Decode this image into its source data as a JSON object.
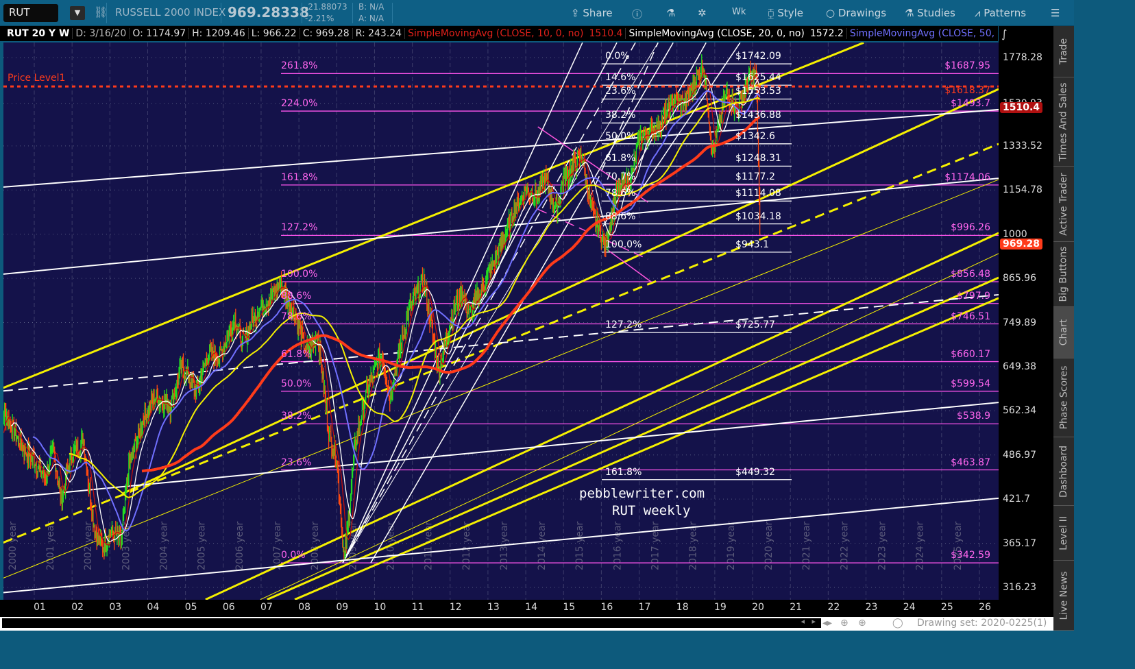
{
  "toolbar": {
    "symbol": "RUT",
    "instrument_name": "RUSSELL 2000 INDEX",
    "last_price": "969.28338",
    "change": "-21.88073",
    "change_pct": "-2.21%",
    "bid": "B: N/A",
    "ask": "A: N/A",
    "buttons": [
      "Share",
      "Wk",
      "Style",
      "Drawings",
      "Studies",
      "Patterns"
    ]
  },
  "legend": {
    "title": "RUT 20 Y W",
    "date": "D: 3/16/20",
    "open": "O: 1174.97",
    "high": "H: 1209.46",
    "low": "L: 966.22",
    "close": "C: 969.28",
    "range": "R: 243.24",
    "studies": [
      {
        "label": "SimpleMovingAvg (CLOSE, 10, 0, no)",
        "value": "1510.4",
        "color": "#e0201a"
      },
      {
        "label": "SimpleMovingAvg (CLOSE, 20, 0, no)",
        "value": "1572.2",
        "color": "#ffffff"
      },
      {
        "label": "SimpleMovingAvg (CLOSE, 50, 0,...",
        "value": "",
        "color": "#7070ff"
      }
    ]
  },
  "sidebar": {
    "tabs": [
      "Trade",
      "Times And Sales",
      "Active Trader",
      "Big Buttons",
      "Chart",
      "Phase Scores",
      "Dashboard",
      "Level II",
      "Live News"
    ],
    "active": "Chart"
  },
  "bottom": {
    "drawing_set": "Drawing set: 2020-0225(1)"
  },
  "watermark": [
    "pebblewriter.com",
    "RUT weekly"
  ],
  "chart_data": {
    "type": "candlestick",
    "scale": "log",
    "ylim": [
      300,
      1900
    ],
    "xlim": [
      2000.0,
      2026.5
    ],
    "grid": true,
    "y_ticks": [
      "1778.28",
      "1530.93",
      "1333.52",
      "1154.78",
      "1000",
      "865.96",
      "749.89",
      "649.38",
      "562.34",
      "486.97",
      "421.7",
      "365.17",
      "316.23"
    ],
    "x_ticks": [
      "01",
      "02",
      "03",
      "04",
      "05",
      "06",
      "07",
      "08",
      "09",
      "10",
      "11",
      "12",
      "13",
      "14",
      "15",
      "16",
      "17",
      "18",
      "19",
      "20",
      "21",
      "22",
      "23",
      "24",
      "25",
      "26"
    ],
    "year_labels": [
      "2000 year",
      "2001 year",
      "2002 year",
      "2003 year",
      "2004 year",
      "2005 year",
      "2006 year",
      "2007 year",
      "2008 year",
      "2009 year",
      "2010 year",
      "2011 year",
      "2012 year",
      "2013 year",
      "2014 year",
      "2015 year",
      "2016 year",
      "2017 year",
      "2018 year",
      "2019 year",
      "2020 year",
      "2021 year",
      "2022 year",
      "2023 year",
      "2024 year",
      "2025 year"
    ],
    "price_badges": [
      {
        "value": "1510.4",
        "color": "#b01010"
      },
      {
        "value": "969.28",
        "color": "#ff3b1a"
      }
    ],
    "price_level": {
      "label": "Price Level1",
      "value": 1618.37,
      "value_label": "$1618.37",
      "color": "#ff3b1a"
    },
    "price_series": [
      [
        2000.0,
        500
      ],
      [
        2000.2,
        560
      ],
      [
        2000.5,
        520
      ],
      [
        2000.8,
        490
      ],
      [
        2001.0,
        480
      ],
      [
        2001.3,
        450
      ],
      [
        2001.5,
        500
      ],
      [
        2001.7,
        420
      ],
      [
        2002.0,
        490
      ],
      [
        2002.3,
        510
      ],
      [
        2002.6,
        380
      ],
      [
        2002.8,
        360
      ],
      [
        2003.0,
        380
      ],
      [
        2003.3,
        370
      ],
      [
        2003.5,
        470
      ],
      [
        2003.9,
        550
      ],
      [
        2004.2,
        590
      ],
      [
        2004.6,
        570
      ],
      [
        2004.9,
        650
      ],
      [
        2005.3,
        600
      ],
      [
        2005.6,
        680
      ],
      [
        2005.9,
        670
      ],
      [
        2006.3,
        760
      ],
      [
        2006.5,
        700
      ],
      [
        2006.9,
        780
      ],
      [
        2007.3,
        820
      ],
      [
        2007.5,
        850
      ],
      [
        2007.9,
        770
      ],
      [
        2008.2,
        680
      ],
      [
        2008.5,
        720
      ],
      [
        2008.8,
        520
      ],
      [
        2009.0,
        480
      ],
      [
        2009.2,
        343
      ],
      [
        2009.5,
        510
      ],
      [
        2009.8,
        600
      ],
      [
        2010.2,
        680
      ],
      [
        2010.4,
        590
      ],
      [
        2010.9,
        780
      ],
      [
        2011.3,
        860
      ],
      [
        2011.7,
        640
      ],
      [
        2012.0,
        750
      ],
      [
        2012.3,
        830
      ],
      [
        2012.5,
        770
      ],
      [
        2012.9,
        850
      ],
      [
        2013.3,
        950
      ],
      [
        2013.7,
        1080
      ],
      [
        2014.0,
        1160
      ],
      [
        2014.3,
        1130
      ],
      [
        2014.5,
        1200
      ],
      [
        2014.8,
        1080
      ],
      [
        2015.0,
        1200
      ],
      [
        2015.5,
        1290
      ],
      [
        2015.7,
        1100
      ],
      [
        2016.1,
        960
      ],
      [
        2016.4,
        1150
      ],
      [
        2016.8,
        1200
      ],
      [
        2017.0,
        1370
      ],
      [
        2017.5,
        1420
      ],
      [
        2017.9,
        1540
      ],
      [
        2018.2,
        1530
      ],
      [
        2018.7,
        1740
      ],
      [
        2018.95,
        1300
      ],
      [
        2019.3,
        1580
      ],
      [
        2019.6,
        1500
      ],
      [
        2019.9,
        1660
      ],
      [
        2020.1,
        1680
      ],
      [
        2020.2,
        969
      ]
    ],
    "moving_averages": [
      {
        "length": 10,
        "color": "#c0100c"
      },
      {
        "length": 20,
        "color": "#ffffff"
      },
      {
        "length": 50,
        "color": "#7070ff"
      },
      {
        "length": 100,
        "color": "#f5f000"
      },
      {
        "length": 200,
        "color": "#ff3b1a"
      }
    ],
    "fib_extension_levels": [
      {
        "pct": "261.8%",
        "value": 1687.95,
        "label": "$1687.95"
      },
      {
        "pct": "224.0%",
        "value": 1493.7,
        "label": "$1493.7"
      },
      {
        "pct": "161.8%",
        "value": 1174.06,
        "label": "$1174.06"
      },
      {
        "pct": "127.2%",
        "value": 996.26,
        "label": "$996.26"
      },
      {
        "pct": "100.0%",
        "value": 856.48,
        "label": "$856.48"
      },
      {
        "pct": "88.6%",
        "value": 797.9,
        "label": "$797.9"
      },
      {
        "pct": "78.6%",
        "value": 746.51,
        "label": "$746.51"
      },
      {
        "pct": "61.8%",
        "value": 660.17,
        "label": "$660.17"
      },
      {
        "pct": "50.0%",
        "value": 599.54,
        "label": "$599.54"
      },
      {
        "pct": "38.2%",
        "value": 538.9,
        "label": "$538.9"
      },
      {
        "pct": "23.6%",
        "value": 463.87,
        "label": "$463.87"
      },
      {
        "pct": "0.0%",
        "value": 342.59,
        "label": "$342.59"
      }
    ],
    "fib_retracement_levels": [
      {
        "pct": "0.0%",
        "value": 1742.09,
        "label": "$1742.09"
      },
      {
        "pct": "14.6%",
        "value": 1625.44,
        "label": "$1625.44"
      },
      {
        "pct": "23.6%",
        "value": 1553.53,
        "label": "$1553.53"
      },
      {
        "pct": "38.2%",
        "value": 1436.88,
        "label": "$1436.88"
      },
      {
        "pct": "50.0%",
        "value": 1342.6,
        "label": "$1342.6"
      },
      {
        "pct": "61.8%",
        "value": 1248.31,
        "label": "$1248.31"
      },
      {
        "pct": "70.7%",
        "value": 1177.2,
        "label": "$1177.2"
      },
      {
        "pct": "78.6%",
        "value": 1114.08,
        "label": "$1114.08"
      },
      {
        "pct": "88.6%",
        "value": 1034.18,
        "label": "$1034.18"
      },
      {
        "pct": "100.0%",
        "value": 943.1,
        "label": "$943.1"
      },
      {
        "pct": "127.2%",
        "value": 725.77,
        "label": "$725.77"
      },
      {
        "pct": "161.8%",
        "value": 449.32,
        "label": "$449.32"
      }
    ],
    "trendlines": [
      {
        "color": "#f5f000",
        "width": 3,
        "dash": false,
        "from": [
          2000.18,
          606
        ],
        "to": [
          2022.94,
          1867
        ]
      },
      {
        "color": "#f5f000",
        "width": 3,
        "dash": false,
        "from": [
          2003.36,
          430
        ],
        "to": [
          2026.51,
          1605
        ]
      },
      {
        "color": "#f5f000",
        "width": 3,
        "dash": true,
        "from": [
          2000.18,
          366
        ],
        "to": [
          2026.51,
          1342
        ]
      },
      {
        "color": "#f5f000",
        "width": 3,
        "dash": false,
        "from": [
          2005.53,
          304
        ],
        "to": [
          2026.51,
          1004
        ]
      },
      {
        "color": "#f5f000",
        "width": 3,
        "dash": false,
        "from": [
          2007.16,
          304
        ],
        "to": [
          2026.51,
          868
        ]
      },
      {
        "color": "#f5f000",
        "width": 3,
        "dash": false,
        "from": [
          2007.89,
          304
        ],
        "to": [
          2026.51,
          812
        ]
      },
      {
        "color": "#f5f000",
        "width": 1,
        "dash": false,
        "from": [
          2000.18,
          326
        ],
        "to": [
          2026.51,
          1195
        ]
      },
      {
        "color": "#f5f000",
        "width": 1,
        "dash": false,
        "from": [
          2006.98,
          304
        ],
        "to": [
          2026.51,
          939
        ]
      },
      {
        "color": "#ffffff",
        "width": 2,
        "dash": false,
        "from": [
          2000.18,
          1166
        ],
        "to": [
          2026.51,
          1501
        ]
      },
      {
        "color": "#ffffff",
        "width": 2,
        "dash": false,
        "from": [
          2000.18,
          878
        ],
        "to": [
          2026.51,
          1200
        ]
      },
      {
        "color": "#ffffff",
        "width": 2,
        "dash": true,
        "from": [
          2000.18,
          600
        ],
        "to": [
          2026.51,
          821
        ]
      },
      {
        "color": "#ffffff",
        "width": 2,
        "dash": false,
        "from": [
          2000.18,
          423
        ],
        "to": [
          2026.51,
          578
        ]
      },
      {
        "color": "#ffffff",
        "width": 2,
        "dash": false,
        "from": [
          2000.18,
          311
        ],
        "to": [
          2026.51,
          423
        ]
      },
      {
        "color": "#ffffff",
        "width": 1.5,
        "dash": false,
        "from": [
          2009.16,
          342.6
        ],
        "to": [
          2015.5,
          1867
        ]
      },
      {
        "color": "#ffffff",
        "width": 1.5,
        "dash": false,
        "from": [
          2009.16,
          342.6
        ],
        "to": [
          2016.41,
          1867
        ]
      },
      {
        "color": "#ffffff",
        "width": 1,
        "dash": false,
        "from": [
          2009.16,
          342.6
        ],
        "to": [
          2017.5,
          1867
        ]
      },
      {
        "color": "#ffffff",
        "width": 1.5,
        "dash": true,
        "from": [
          2009.16,
          342.6
        ],
        "to": [
          2016.9,
          1867
        ]
      },
      {
        "color": "#ffffff",
        "width": 1.5,
        "dash": false,
        "from": [
          2009.9,
          342.6
        ],
        "to": [
          2017.9,
          1867
        ]
      },
      {
        "color": "#ffffff",
        "width": 1.5,
        "dash": false,
        "from": [
          2016.05,
          1026
        ],
        "to": [
          2018.77,
          1867
        ]
      },
      {
        "color": "#ffffff",
        "width": 1.5,
        "dash": false,
        "from": [
          2016.77,
          1097
        ],
        "to": [
          2019.67,
          1867
        ]
      },
      {
        "color": "#ffffff",
        "width": 1.5,
        "dash": true,
        "from": [
          2015.68,
          1122
        ],
        "to": [
          2017.5,
          1867
        ]
      },
      {
        "color": "#ff55dd",
        "width": 1.5,
        "dash": false,
        "from": [
          2014.32,
          1419
        ],
        "to": [
          2017.23,
          1110
        ]
      },
      {
        "color": "#ff55dd",
        "width": 1.5,
        "dash": true,
        "from": [
          2014.32,
          1085
        ],
        "to": [
          2017.23,
          922
        ]
      },
      {
        "color": "#ff55dd",
        "width": 1.5,
        "dash": false,
        "from": [
          2016.05,
          960
        ],
        "to": [
          2017.32,
          856
        ]
      }
    ]
  }
}
